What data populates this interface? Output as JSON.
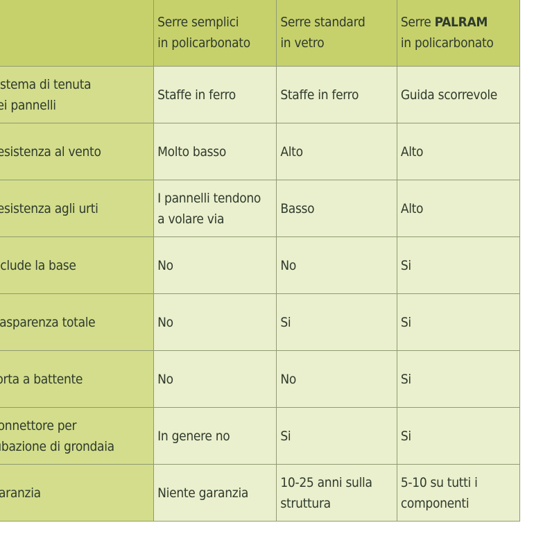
{
  "header": {
    "corner": "",
    "col1": "Serre semplici\nin policarbonato",
    "col2": "Serre standard\nin vetro",
    "col3_prefix": "Serre ",
    "col3_brand": "PALRAM",
    "col3_suffix": "\nin policarbonato"
  },
  "rows": [
    {
      "label": "Sistema di tenuta\ndei pannelli",
      "c1": "Staffe in ferro",
      "c2": "Staffe in ferro",
      "c3": "Guida scorrevole"
    },
    {
      "label": "Resistenza al vento",
      "c1": "Molto basso",
      "c2": "Alto",
      "c3": "Alto"
    },
    {
      "label": "Resistenza agli urti",
      "c1": "I pannelli tendono\na volare via",
      "c2": "Basso",
      "c3": "Alto"
    },
    {
      "label": "Include la base",
      "c1": "No",
      "c2": "No",
      "c3": "Si"
    },
    {
      "label": "Trasparenza totale",
      "c1": "No",
      "c2": "Si",
      "c3": "Si"
    },
    {
      "label": "Porta a battente",
      "c1": "No",
      "c2": "No",
      "c3": "Si"
    },
    {
      "label": "Connettore per\ntubazione di grondaia",
      "c1": "In genere no",
      "c2": "Si",
      "c3": "Si"
    },
    {
      "label": "Garanzia",
      "c1": "Niente garanzia",
      "c2": "10-25 anni sulla\nstruttura",
      "c3": "5-10 su tutti i\ncomponenti"
    }
  ],
  "colors": {
    "header": "#c7d16c",
    "label_col": "#d3dd8c",
    "cell": "#eaefcd",
    "text": "#2e3a2c"
  }
}
